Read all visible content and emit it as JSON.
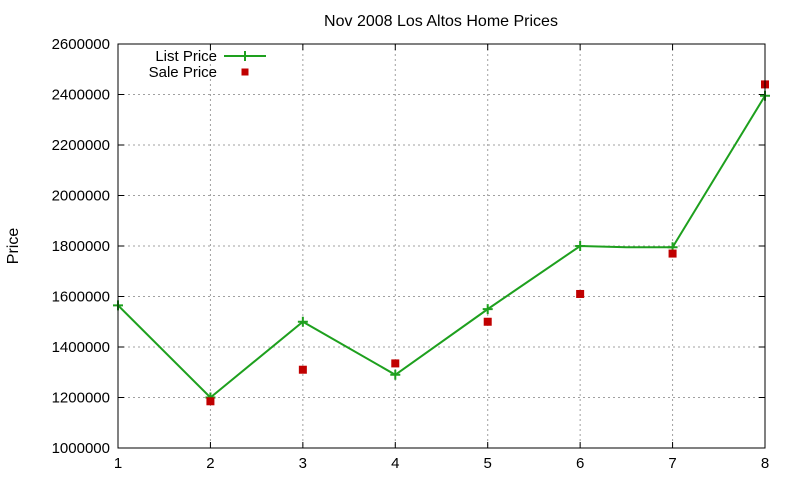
{
  "chart_data": {
    "type": "line",
    "title": "Nov 2008 Los Altos Home Prices",
    "xlabel": "",
    "ylabel": "Price",
    "xlim": [
      1,
      8
    ],
    "ylim": [
      1000000,
      2600000
    ],
    "x_ticks": [
      "1",
      "2",
      "3",
      "4",
      "5",
      "6",
      "7",
      "8"
    ],
    "y_ticks": [
      "1000000",
      "1200000",
      "1400000",
      "1600000",
      "1800000",
      "2000000",
      "2200000",
      "2400000",
      "2600000"
    ],
    "grid": true,
    "legend_position": "top-left",
    "series": [
      {
        "name": "List Price",
        "kind": "line",
        "marker": "plus",
        "color": "#1ea01e",
        "x": [
          1,
          2,
          3,
          4,
          5,
          6,
          6.5,
          7,
          8
        ],
        "values": [
          1565000,
          1200000,
          1500000,
          1290000,
          1550000,
          1800000,
          1795000,
          1795000,
          2395000
        ],
        "marker_x": [
          1,
          2,
          3,
          4,
          5,
          6,
          7,
          8
        ]
      },
      {
        "name": "Sale Price",
        "kind": "scatter",
        "marker": "square",
        "color": "#c00000",
        "x": [
          2,
          3,
          4,
          5,
          6,
          7,
          8
        ],
        "values": [
          1185000,
          1310000,
          1335000,
          1500000,
          1610000,
          1770000,
          2440000
        ]
      }
    ]
  }
}
